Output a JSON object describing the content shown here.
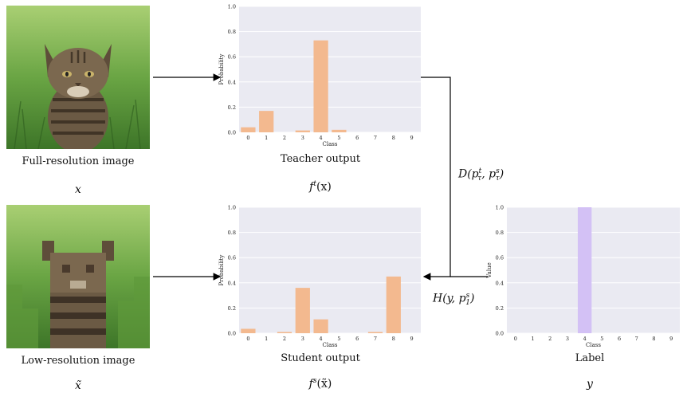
{
  "captions": {
    "full_image": "Full-resolution image",
    "low_image": "Low-resolution image",
    "teacher": "Teacher output",
    "student": "Student output",
    "label": "Label"
  },
  "math": {
    "x": "x",
    "x_tilde": "x̃",
    "teacher_fn": "f",
    "teacher_sup": "t",
    "teacher_arg": "(x)",
    "student_fn": "f",
    "student_sup": "s",
    "student_arg": "(x̃)",
    "y": "y",
    "distill_loss": {
      "fn": "D(p",
      "sup1": "t",
      "sub1": "τ",
      "mid": ", p",
      "sup2": "s",
      "sub2": "τ",
      "end": ")"
    },
    "ce_loss": {
      "fn": "H(y, p",
      "sup": "s",
      "sub": "1",
      "end": ")"
    }
  },
  "colors": {
    "bar_orange": "#f3b98f",
    "bar_violet": "#d3c1f5",
    "plot_bg": "#eaeaf2",
    "grass_dark": "#3f7a2a",
    "grass_light": "#8fc25a",
    "cat_fur": "#6b5a44"
  },
  "chart_data": [
    {
      "id": "teacher",
      "type": "bar",
      "categories": [
        "0",
        "1",
        "2",
        "3",
        "4",
        "5",
        "6",
        "7",
        "8",
        "9"
      ],
      "values": [
        0.04,
        0.17,
        0.0,
        0.015,
        0.73,
        0.02,
        0.0,
        0.0,
        0.0,
        0.0
      ],
      "ylim": [
        0,
        1.0
      ],
      "yticks": [
        "0.0",
        "0.2",
        "0.4",
        "0.6",
        "0.8",
        "1.0"
      ],
      "xlabel": "Class",
      "ylabel": "Probability",
      "color": "#f3b98f"
    },
    {
      "id": "student",
      "type": "bar",
      "categories": [
        "0",
        "1",
        "2",
        "3",
        "4",
        "5",
        "6",
        "7",
        "8",
        "9"
      ],
      "values": [
        0.035,
        0.0,
        0.01,
        0.36,
        0.11,
        0.0,
        0.0,
        0.01,
        0.45,
        0.0
      ],
      "ylim": [
        0,
        1.0
      ],
      "yticks": [
        "0.0",
        "0.2",
        "0.4",
        "0.6",
        "0.8",
        "1.0"
      ],
      "xlabel": "Class",
      "ylabel": "Probability",
      "color": "#f3b98f"
    },
    {
      "id": "label",
      "type": "bar",
      "categories": [
        "0",
        "1",
        "2",
        "3",
        "4",
        "5",
        "6",
        "7",
        "8",
        "9"
      ],
      "values": [
        0,
        0,
        0,
        0,
        1.0,
        0,
        0,
        0,
        0,
        0
      ],
      "ylim": [
        0,
        1.0
      ],
      "yticks": [
        "0.0",
        "0.2",
        "0.4",
        "0.6",
        "0.8",
        "1.0"
      ],
      "xlabel": "Class",
      "ylabel": "Value",
      "color": "#d3c1f5"
    }
  ]
}
